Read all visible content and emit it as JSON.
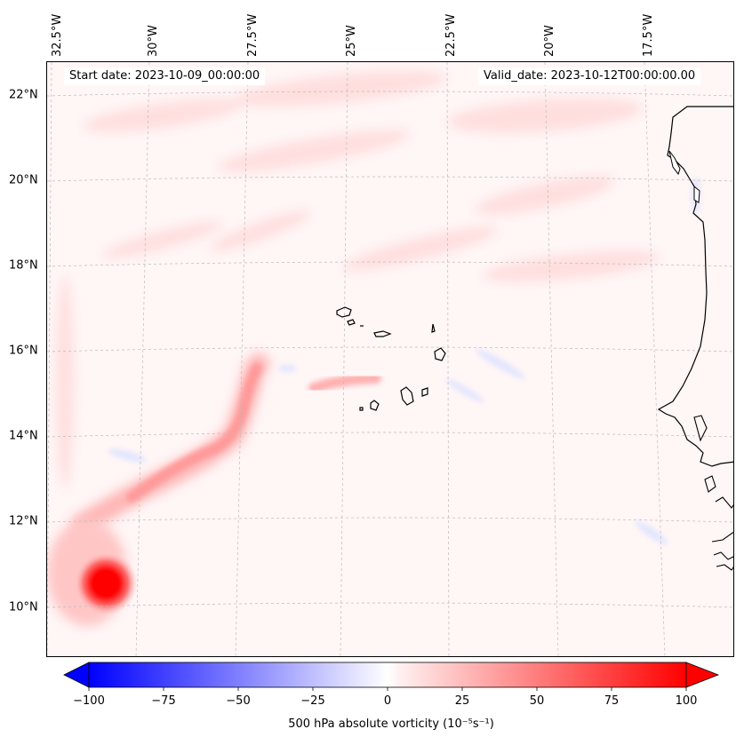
{
  "map": {
    "start_label": "Start date: 2023-10-09_00:00:00",
    "valid_label": "Valid_date: 2023-10-12T00:00:00.00",
    "lon_labels": [
      "32.5°W",
      "30°W",
      "27.5°W",
      "25°W",
      "22.5°W",
      "20°W",
      "17.5°W"
    ],
    "lat_labels": [
      "22°N",
      "20°N",
      "18°N",
      "16°N",
      "14°N",
      "12°N",
      "10°N"
    ],
    "field": "500 hPa absolute vorticity",
    "features": [
      "Cabo Verde islands",
      "West African coastline",
      "vorticity maximum (tropical cyclone)",
      "vorticity filament"
    ]
  },
  "colorbar": {
    "label": "500 hPa absolute vorticity (10⁻⁵s⁻¹)",
    "ticks": [
      "−100",
      "−75",
      "−50",
      "−25",
      "0",
      "25",
      "50",
      "75",
      "100"
    ],
    "min": -100,
    "max": 100,
    "low_color": "#0000ff",
    "mid_color": "#ffffff",
    "high_color": "#ff0000"
  }
}
